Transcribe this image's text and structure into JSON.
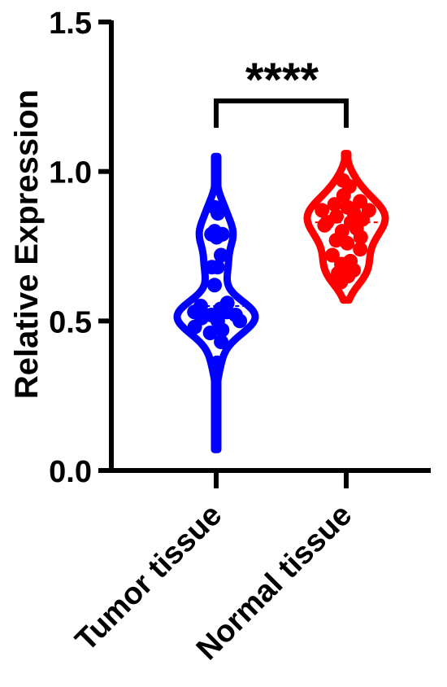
{
  "chart_data": {
    "type": "violin",
    "ylabel": "Relative Expression",
    "ylim": [
      0,
      1.5
    ],
    "yticks": [
      0.0,
      0.5,
      1.0,
      1.5
    ],
    "ytick_labels": [
      "0.0",
      "0.5",
      "1.0",
      "1.5"
    ],
    "categories": [
      "Tumor tissue",
      "Normal tissue"
    ],
    "significance": "****",
    "series": [
      {
        "category": "Tumor tissue",
        "color": "#0000ff",
        "range": [
          0.07,
          1.05
        ],
        "median": 0.55,
        "points": [
          0.88,
          0.86,
          0.8,
          0.79,
          0.79,
          0.78,
          0.72,
          0.68,
          0.68,
          0.62,
          0.56,
          0.55,
          0.54,
          0.53,
          0.53,
          0.52,
          0.52,
          0.51,
          0.5,
          0.5,
          0.48,
          0.47,
          0.46,
          0.43,
          0.36
        ]
      },
      {
        "category": "Normal tissue",
        "color": "#ff0000",
        "range": [
          0.57,
          1.06
        ],
        "median": 0.83,
        "points": [
          0.97,
          0.95,
          0.92,
          0.9,
          0.89,
          0.88,
          0.87,
          0.87,
          0.86,
          0.85,
          0.84,
          0.83,
          0.83,
          0.82,
          0.81,
          0.8,
          0.78,
          0.77,
          0.76,
          0.74,
          0.72,
          0.7,
          0.69,
          0.67,
          0.66,
          0.65,
          0.63
        ]
      }
    ]
  }
}
